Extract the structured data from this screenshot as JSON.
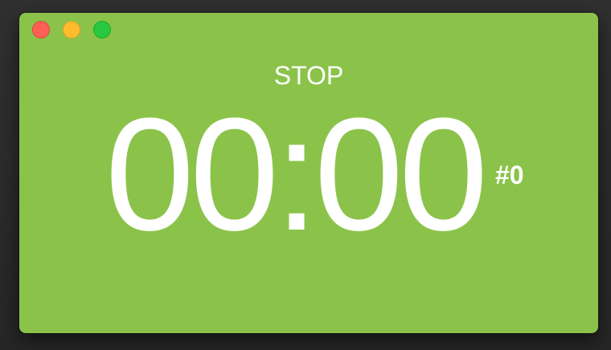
{
  "window": {
    "background_color": "#8bc34a",
    "controls": {
      "close_color": "#fe5f57",
      "minimize_color": "#febc2e",
      "zoom_color": "#28c840"
    }
  },
  "timer": {
    "state_label": "STOP",
    "time": "00:00",
    "counter": "#0"
  }
}
